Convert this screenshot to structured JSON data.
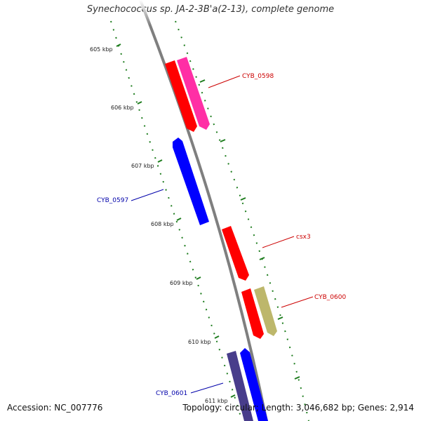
{
  "title": "Synechococcus sp. JA-2-3B'a(2-13), complete genome",
  "footer": {
    "accession": "Accession: NC_007776",
    "summary": "Topology: circular; Length: 3,046,682 bp; Genes: 2,914"
  },
  "ticks": [
    "605 kbp",
    "606 kbp",
    "607 kbp",
    "608 kbp",
    "609 kbp",
    "610 kbp",
    "611 kbp"
  ],
  "colors": {
    "backbone": "#7f7f7f",
    "tick": "#1e7d1e",
    "label_red": "#cc0000",
    "label_blue": "#0000aa"
  },
  "genes": [
    {
      "id": "left-red",
      "strand": "forward",
      "color": "#ff0000",
      "label": ""
    },
    {
      "id": "pink",
      "strand": "forward",
      "color": "#ff2fa5",
      "label": "CYB_0598"
    },
    {
      "id": "blue-top",
      "strand": "reverse",
      "color": "#0000ff",
      "label": "CYB_0597"
    },
    {
      "id": "csx3",
      "strand": "forward",
      "color": "#ff0000",
      "label": "csx3"
    },
    {
      "id": "red-lower",
      "strand": "forward",
      "color": "#ff0000",
      "label": "CYB_0600"
    },
    {
      "id": "olive",
      "strand": "forward",
      "color": "#bdb76b",
      "label": ""
    },
    {
      "id": "purple",
      "strand": "forward",
      "color": "#483d8b",
      "label": "CYB_0601"
    },
    {
      "id": "blue-bottom",
      "strand": "reverse",
      "color": "#0000ff",
      "label": ""
    }
  ]
}
